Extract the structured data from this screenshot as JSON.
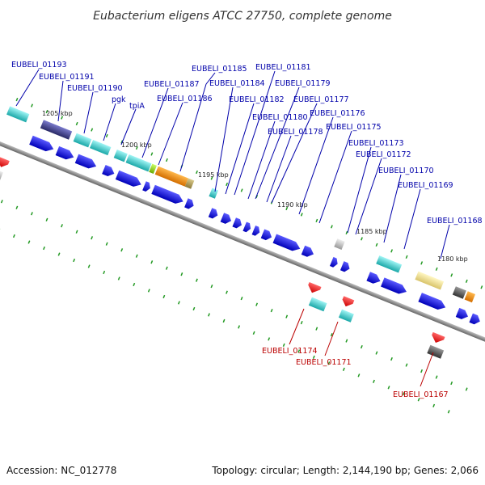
{
  "title": "Eubacterium eligens ATCC 27750, complete genome",
  "footer": {
    "accession": "Accession: NC_012778",
    "summary": "Topology: circular; Length: 2,144,190 bp; Genes: 2,066"
  },
  "colors": {
    "cds_forward": "#1a1ae6",
    "cds_reverse": "#ee1111",
    "rna_teal": "#33cccc",
    "backbone": "#888888",
    "tick": "#229922",
    "label_forward": "#0000aa",
    "label_reverse": "#bb0000"
  },
  "scale_labels": [
    "1205 kbp",
    "1200 kbp",
    "1195 kbp",
    "1190 kbp",
    "1185 kbp",
    "1180 kbp"
  ],
  "gene_labels_top": [
    "EUBELI_01193",
    "EUBELI_01191",
    "EUBELI_01190",
    "pgk",
    "tpiA",
    "EUBELI_01187",
    "EUBELI_01186",
    "EUBELI_01185",
    "EUBELI_01184",
    "EUBELI_01182",
    "EUBELI_01181",
    "EUBELI_01180",
    "EUBELI_01179",
    "EUBELI_01178",
    "EUBELI_01177",
    "EUBELI_01176",
    "EUBELI_01175",
    "EUBELI_01173",
    "EUBELI_01172",
    "EUBELI_01170",
    "EUBELI_01169",
    "EUBELI_01168"
  ],
  "gene_labels_bottom": [
    "EUBELI_01174",
    "EUBELI_01171",
    "EUBELI_01167"
  ]
}
